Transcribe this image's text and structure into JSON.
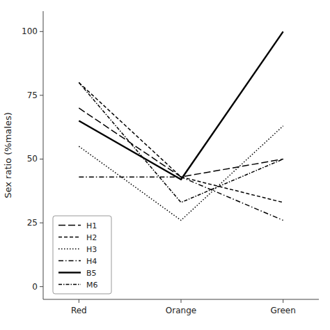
{
  "chart_data": {
    "type": "line",
    "categories": [
      "Red",
      "Orange",
      "Green"
    ],
    "series": [
      {
        "name": "H1",
        "values": [
          70,
          43,
          50
        ],
        "line_style": "long-dash"
      },
      {
        "name": "H2",
        "values": [
          80,
          43,
          33
        ],
        "line_style": "dash"
      },
      {
        "name": "H3",
        "values": [
          55,
          26,
          63
        ],
        "line_style": "dotted"
      },
      {
        "name": "H4",
        "values": [
          43,
          43,
          26
        ],
        "line_style": "dash-dot"
      },
      {
        "name": "B5",
        "values": [
          65,
          42,
          100
        ],
        "line_style": "solid"
      },
      {
        "name": "M6",
        "values": [
          80,
          33,
          50
        ],
        "line_style": "dash-dot-short"
      }
    ],
    "y_label": "Sex ratio (%males)",
    "ylim": [
      -5,
      108
    ],
    "yticks": [
      0,
      25,
      50,
      75,
      100
    ],
    "color": "black",
    "grid": false,
    "legend": "lower left"
  }
}
